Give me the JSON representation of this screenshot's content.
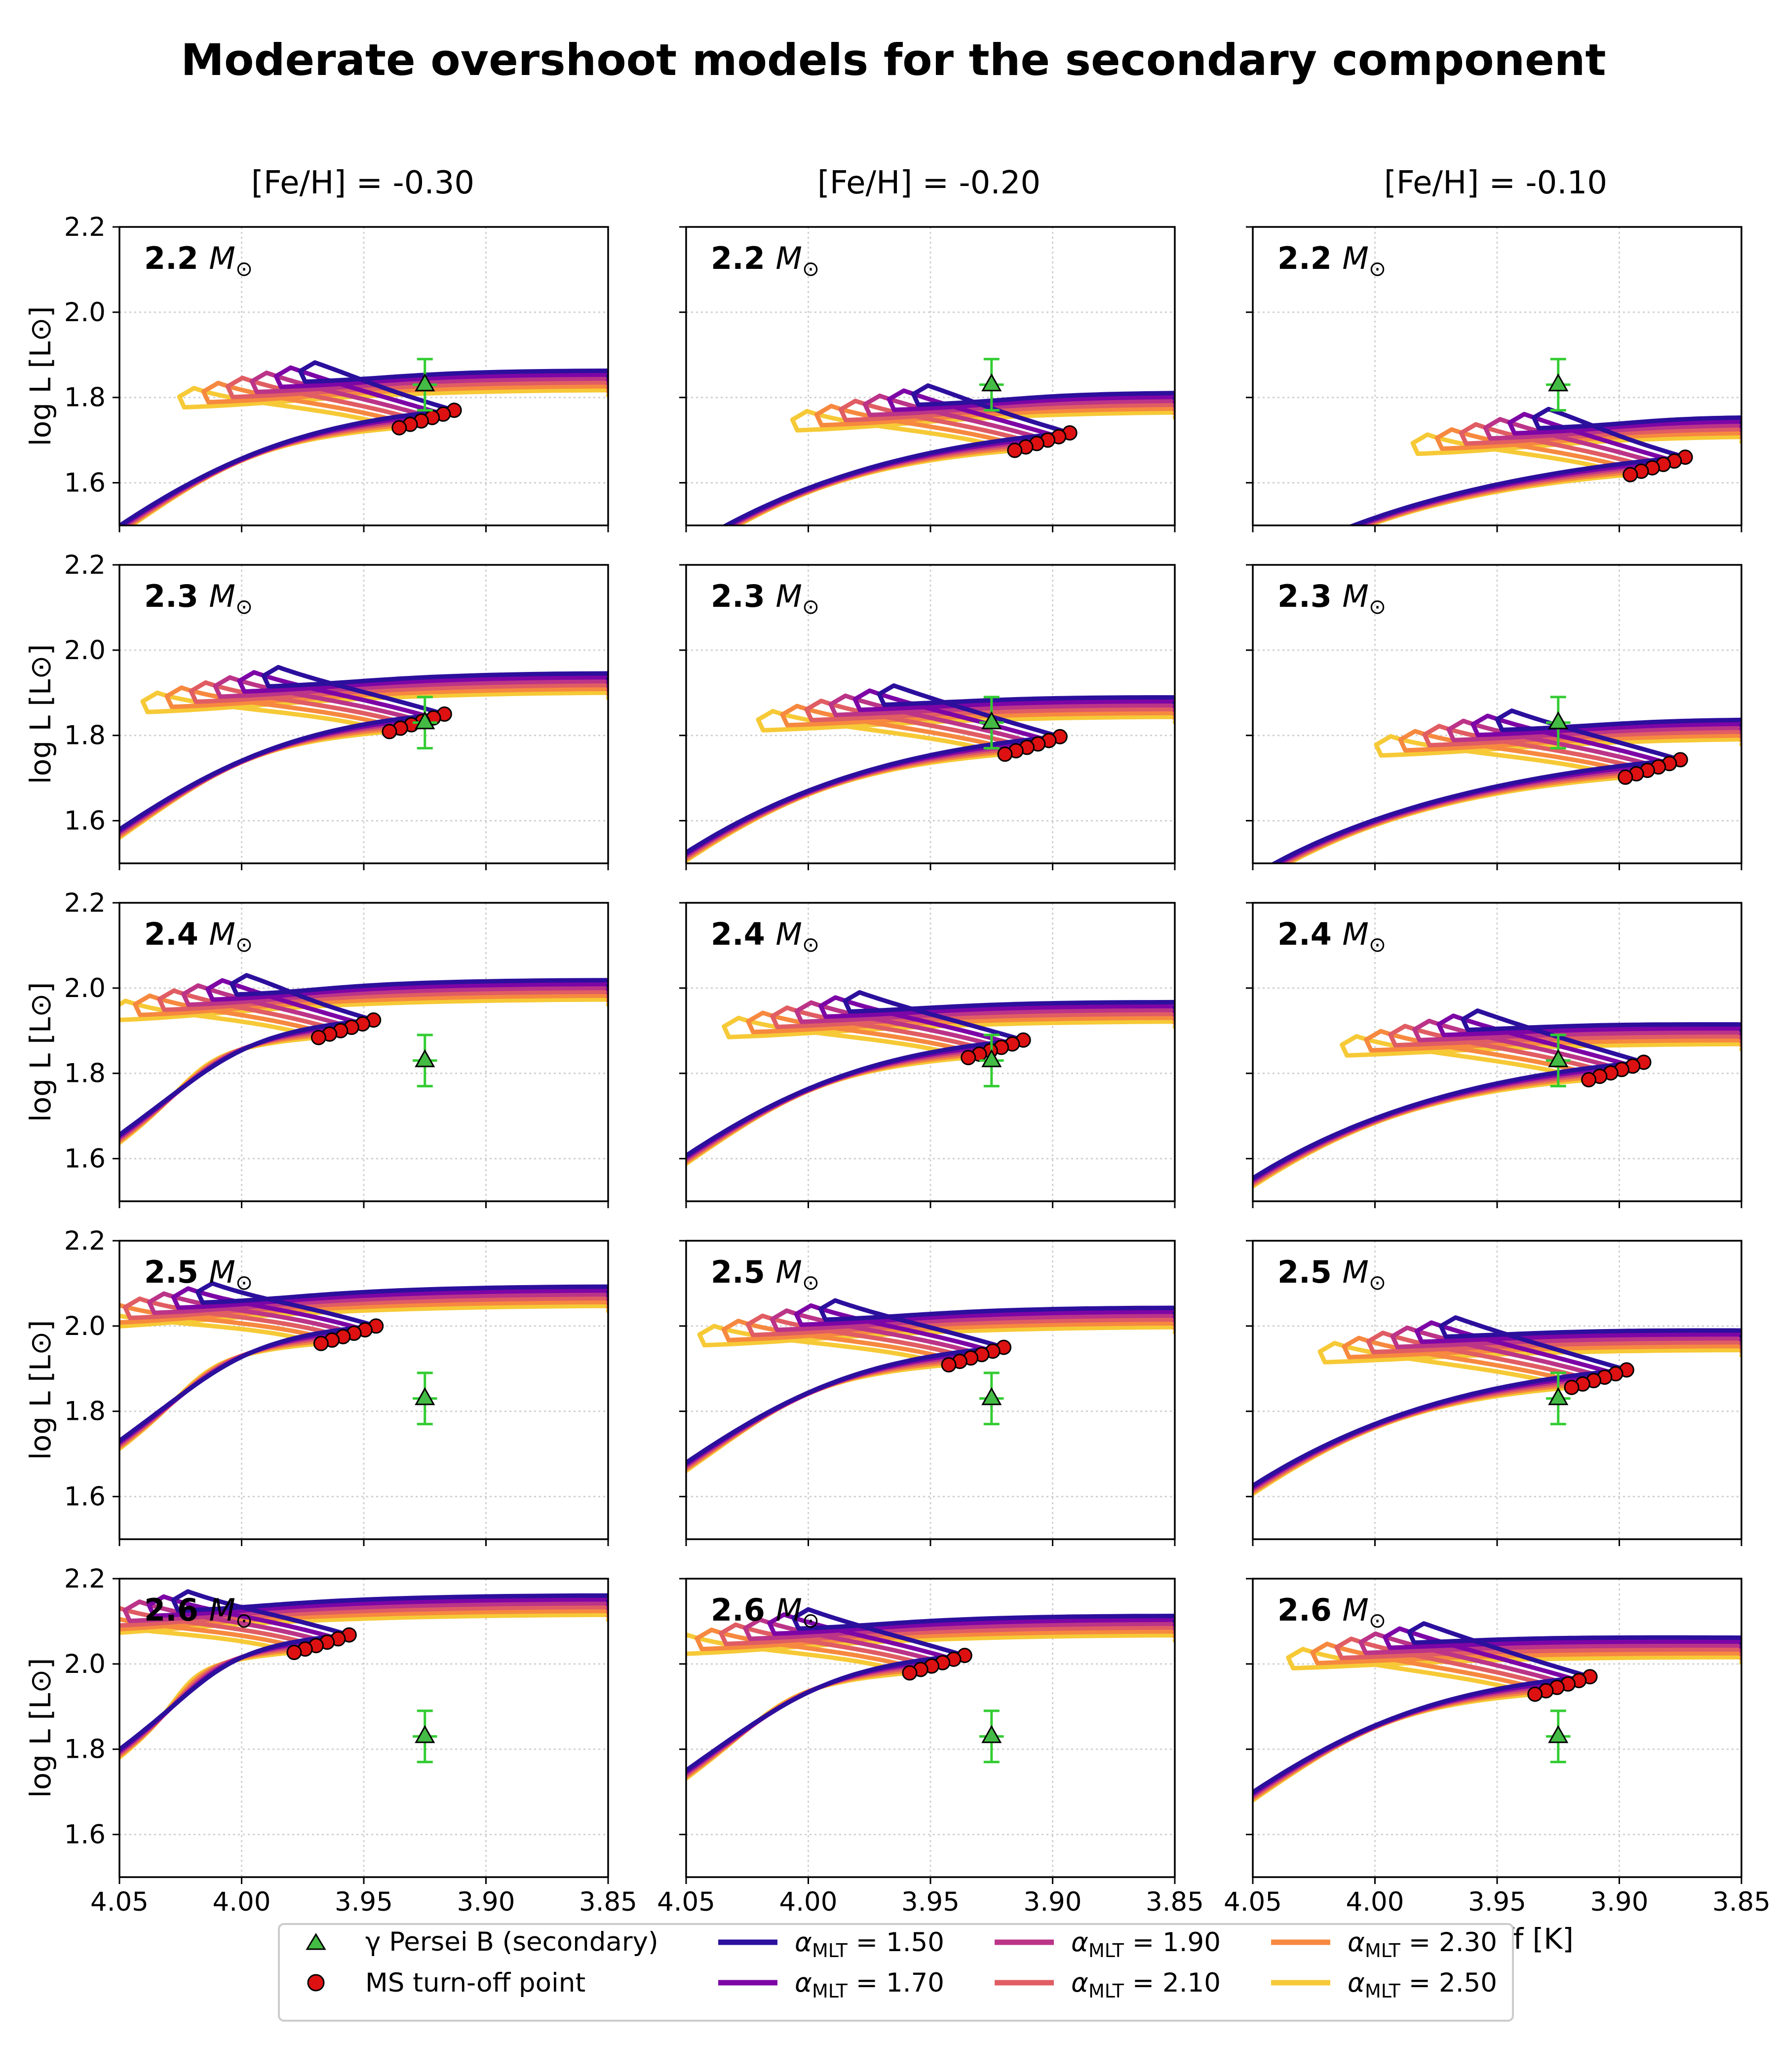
{
  "title": "Moderate overshoot models for the secondary component",
  "column_titles": [
    "[Fe/H] = -0.30",
    "[Fe/H] = -0.20",
    "[Fe/H] = -0.10"
  ],
  "mass_values": [
    "2.2",
    "2.3",
    "2.4",
    "2.5",
    "2.6"
  ],
  "mass_unit_symbol": "M",
  "mass_unit_subscript": "⊙",
  "axes": {
    "ylabel": "log L [L⊙]",
    "xlabel": "log Teff [K]",
    "xlim": [
      4.05,
      3.85
    ],
    "ylim": [
      1.5,
      2.2
    ],
    "xticks": [
      4.05,
      4.0,
      3.95,
      3.9,
      3.85
    ],
    "xtick_labels": [
      "4.05",
      "4.00",
      "3.95",
      "3.90",
      "3.85"
    ],
    "yticks": [
      1.6,
      1.8,
      2.0,
      2.2
    ],
    "ytick_labels": [
      "1.6",
      "1.8",
      "2.0",
      "2.2"
    ],
    "grid": true
  },
  "legend": {
    "observed": "γ Persei B (secondary)",
    "turnoff": "MS turn-off point",
    "alpha_entries": [
      {
        "label": "α_MLT = 1.50",
        "alpha": "1.50",
        "color": "#2c0f9c"
      },
      {
        "label": "α_MLT = 1.70",
        "alpha": "1.70",
        "color": "#7d05a6"
      },
      {
        "label": "α_MLT = 1.90",
        "alpha": "1.90",
        "color": "#bb3488"
      },
      {
        "label": "α_MLT = 2.10",
        "alpha": "2.10",
        "color": "#e05d63"
      },
      {
        "label": "α_MLT = 2.30",
        "alpha": "2.30",
        "color": "#f6893f"
      },
      {
        "label": "α_MLT = 2.50",
        "alpha": "2.50",
        "color": "#f6c936"
      }
    ],
    "label_prefix": "α",
    "label_sub": "MLT",
    "label_eq": " = "
  },
  "colors": {
    "observed_fill": "#44bb44",
    "observed_error": "#33cc33",
    "turnoff_fill": "#dd1111",
    "grid": "#d0d0d0"
  },
  "chart_data": {
    "type": "line",
    "observed_point": {
      "logTeff": 3.925,
      "logL": 1.83,
      "err_logL": 0.06,
      "err_logTeff": 0.005
    },
    "turnoff_offsets": [
      {
        "dT": 0.0,
        "dL": 0.0
      },
      {
        "dT": 0.0045,
        "dL": -0.009
      },
      {
        "dT": 0.009,
        "dL": -0.017
      },
      {
        "dT": 0.0135,
        "dL": -0.025
      },
      {
        "dT": 0.018,
        "dL": -0.033
      },
      {
        "dT": 0.0225,
        "dL": -0.041
      }
    ],
    "panels": [
      {
        "row": 0,
        "col": 0,
        "mass": "2.2",
        "feh": "-0.30",
        "turnoff_logTeff": 3.913,
        "turnoff_logL": 1.77,
        "hook_logTeff": 3.97,
        "hook_logL": 1.882,
        "giant_logL": 1.862
      },
      {
        "row": 0,
        "col": 1,
        "mass": "2.2",
        "feh": "-0.20",
        "turnoff_logTeff": 3.893,
        "turnoff_logL": 1.717,
        "hook_logTeff": 3.951,
        "hook_logL": 1.828,
        "giant_logL": 1.81
      },
      {
        "row": 0,
        "col": 2,
        "mass": "2.2",
        "feh": "-0.10",
        "turnoff_logTeff": 3.873,
        "turnoff_logL": 1.66,
        "hook_logTeff": 3.929,
        "hook_logL": 1.773,
        "giant_logL": 1.753
      },
      {
        "row": 1,
        "col": 0,
        "mass": "2.3",
        "feh": "-0.30",
        "turnoff_logTeff": 3.917,
        "turnoff_logL": 1.85,
        "hook_logTeff": 3.985,
        "hook_logL": 1.96,
        "giant_logL": 1.945
      },
      {
        "row": 1,
        "col": 1,
        "mass": "2.3",
        "feh": "-0.20",
        "turnoff_logTeff": 3.897,
        "turnoff_logL": 1.797,
        "hook_logTeff": 3.965,
        "hook_logL": 1.917,
        "giant_logL": 1.888
      },
      {
        "row": 1,
        "col": 2,
        "mass": "2.3",
        "feh": "-0.10",
        "turnoff_logTeff": 3.875,
        "turnoff_logL": 1.743,
        "hook_logTeff": 3.944,
        "hook_logL": 1.858,
        "giant_logL": 1.836
      },
      {
        "row": 2,
        "col": 0,
        "mass": "2.4",
        "feh": "-0.30",
        "turnoff_logTeff": 3.946,
        "turnoff_logL": 1.925,
        "hook_logTeff": 3.998,
        "hook_logL": 2.03,
        "giant_logL": 2.018
      },
      {
        "row": 2,
        "col": 1,
        "mass": "2.4",
        "feh": "-0.20",
        "turnoff_logTeff": 3.912,
        "turnoff_logL": 1.878,
        "hook_logTeff": 3.979,
        "hook_logL": 1.99,
        "giant_logL": 1.966
      },
      {
        "row": 2,
        "col": 2,
        "mass": "2.4",
        "feh": "-0.10",
        "turnoff_logTeff": 3.89,
        "turnoff_logL": 1.826,
        "hook_logTeff": 3.958,
        "hook_logL": 1.947,
        "giant_logL": 1.913
      },
      {
        "row": 3,
        "col": 0,
        "mass": "2.5",
        "feh": "-0.30",
        "turnoff_logTeff": 3.945,
        "turnoff_logL": 2.0,
        "hook_logTeff": 4.012,
        "hook_logL": 2.1,
        "giant_logL": 2.092
      },
      {
        "row": 3,
        "col": 1,
        "mass": "2.5",
        "feh": "-0.20",
        "turnoff_logTeff": 3.92,
        "turnoff_logL": 1.95,
        "hook_logTeff": 3.989,
        "hook_logL": 2.06,
        "giant_logL": 2.042
      },
      {
        "row": 3,
        "col": 2,
        "mass": "2.5",
        "feh": "-0.10",
        "turnoff_logTeff": 3.897,
        "turnoff_logL": 1.897,
        "hook_logTeff": 3.967,
        "hook_logL": 2.02,
        "giant_logL": 1.988
      },
      {
        "row": 4,
        "col": 0,
        "mass": "2.6",
        "feh": "-0.30",
        "turnoff_logTeff": 3.956,
        "turnoff_logL": 2.068,
        "hook_logTeff": 4.022,
        "hook_logL": 2.17,
        "giant_logL": 2.16
      },
      {
        "row": 4,
        "col": 1,
        "mass": "2.6",
        "feh": "-0.20",
        "turnoff_logTeff": 3.936,
        "turnoff_logL": 2.02,
        "hook_logTeff": 4.0,
        "hook_logL": 2.128,
        "giant_logL": 2.112
      },
      {
        "row": 4,
        "col": 2,
        "mass": "2.6",
        "feh": "-0.10",
        "turnoff_logTeff": 3.912,
        "turnoff_logL": 1.97,
        "hook_logTeff": 3.98,
        "hook_logL": 2.095,
        "giant_logL": 2.06
      }
    ]
  }
}
